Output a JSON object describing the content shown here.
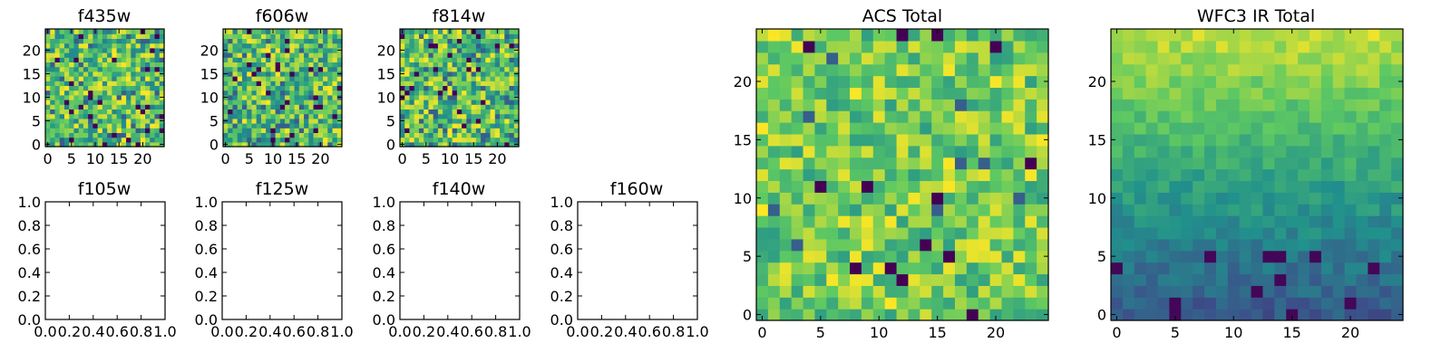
{
  "colormap": [
    "#440154",
    "#3b528b",
    "#21918c",
    "#5ec962",
    "#fde725"
  ],
  "frame_color": "#000000",
  "chart_data": [
    {
      "type": "heatmap",
      "title": "f435w",
      "grid_size": [
        25,
        25
      ],
      "seed": 11,
      "pattern": "noise",
      "xlim": [
        -0.5,
        24.5
      ],
      "ylim": [
        -0.5,
        24.5
      ],
      "xticks": [
        0,
        5,
        10,
        15,
        20
      ],
      "yticks": [
        0,
        5,
        10,
        15,
        20
      ],
      "xticklabels": [
        "0",
        "5",
        "10",
        "15",
        "20"
      ],
      "yticklabels": [
        "0",
        "5",
        "10",
        "15",
        "20"
      ]
    },
    {
      "type": "heatmap",
      "title": "f606w",
      "grid_size": [
        25,
        25
      ],
      "seed": 23,
      "pattern": "noise",
      "xlim": [
        -0.5,
        24.5
      ],
      "ylim": [
        -0.5,
        24.5
      ],
      "xticks": [
        0,
        5,
        10,
        15,
        20
      ],
      "yticks": [
        0,
        5,
        10,
        15,
        20
      ],
      "xticklabels": [
        "0",
        "5",
        "10",
        "15",
        "20"
      ],
      "yticklabels": [
        "0",
        "5",
        "10",
        "15",
        "20"
      ]
    },
    {
      "type": "heatmap",
      "title": "f814w",
      "grid_size": [
        25,
        25
      ],
      "seed": 37,
      "pattern": "noise",
      "xlim": [
        -0.5,
        24.5
      ],
      "ylim": [
        -0.5,
        24.5
      ],
      "xticks": [
        0,
        5,
        10,
        15,
        20
      ],
      "yticks": [
        0,
        5,
        10,
        15,
        20
      ],
      "xticklabels": [
        "0",
        "5",
        "10",
        "15",
        "20"
      ],
      "yticklabels": [
        "0",
        "5",
        "10",
        "15",
        "20"
      ]
    },
    {
      "type": "line",
      "title": "f105w",
      "series": [],
      "xlim": [
        0.0,
        1.0
      ],
      "ylim": [
        0.0,
        1.0
      ],
      "xticks": [
        0.0,
        0.2,
        0.4,
        0.6,
        0.8,
        1.0
      ],
      "yticks": [
        0.0,
        0.2,
        0.4,
        0.6,
        0.8,
        1.0
      ],
      "xticklabels": [
        "0.0",
        "0.2",
        "0.4",
        "0.6",
        "0.8",
        "1.0"
      ],
      "yticklabels": [
        "0.0",
        "0.2",
        "0.4",
        "0.6",
        "0.8",
        "1.0"
      ]
    },
    {
      "type": "line",
      "title": "f125w",
      "series": [],
      "xlim": [
        0.0,
        1.0
      ],
      "ylim": [
        0.0,
        1.0
      ],
      "xticks": [
        0.0,
        0.2,
        0.4,
        0.6,
        0.8,
        1.0
      ],
      "yticks": [
        0.0,
        0.2,
        0.4,
        0.6,
        0.8,
        1.0
      ],
      "xticklabels": [
        "0.0",
        "0.2",
        "0.4",
        "0.6",
        "0.8",
        "1.0"
      ],
      "yticklabels": [
        "0.0",
        "0.2",
        "0.4",
        "0.6",
        "0.8",
        "1.0"
      ]
    },
    {
      "type": "line",
      "title": "f140w",
      "series": [],
      "xlim": [
        0.0,
        1.0
      ],
      "ylim": [
        0.0,
        1.0
      ],
      "xticks": [
        0.0,
        0.2,
        0.4,
        0.6,
        0.8,
        1.0
      ],
      "yticks": [
        0.0,
        0.2,
        0.4,
        0.6,
        0.8,
        1.0
      ],
      "xticklabels": [
        "0.0",
        "0.2",
        "0.4",
        "0.6",
        "0.8",
        "1.0"
      ],
      "yticklabels": [
        "0.0",
        "0.2",
        "0.4",
        "0.6",
        "0.8",
        "1.0"
      ]
    },
    {
      "type": "line",
      "title": "f160w",
      "series": [],
      "xlim": [
        0.0,
        1.0
      ],
      "ylim": [
        0.0,
        1.0
      ],
      "xticks": [
        0.0,
        0.2,
        0.4,
        0.6,
        0.8,
        1.0
      ],
      "yticks": [
        0.0,
        0.2,
        0.4,
        0.6,
        0.8,
        1.0
      ],
      "xticklabels": [
        "0.0",
        "0.2",
        "0.4",
        "0.6",
        "0.8",
        "1.0"
      ],
      "yticklabels": [
        "0.0",
        "0.2",
        "0.4",
        "0.6",
        "0.8",
        "1.0"
      ]
    },
    {
      "type": "heatmap",
      "title": "ACS Total",
      "grid_size": [
        25,
        25
      ],
      "seed": 53,
      "pattern": "bright_noise",
      "xlim": [
        -0.5,
        24.5
      ],
      "ylim": [
        -0.5,
        24.5
      ],
      "xticks": [
        0,
        5,
        10,
        15,
        20
      ],
      "yticks": [
        0,
        5,
        10,
        15,
        20
      ],
      "xticklabels": [
        "0",
        "5",
        "10",
        "15",
        "20"
      ],
      "yticklabels": [
        "0",
        "5",
        "10",
        "15",
        "20"
      ]
    },
    {
      "type": "heatmap",
      "title": "WFC3 IR Total",
      "grid_size": [
        25,
        25
      ],
      "seed": 71,
      "pattern": "vertical_gradient",
      "xlim": [
        -0.5,
        24.5
      ],
      "ylim": [
        -0.5,
        24.5
      ],
      "xticks": [
        0,
        5,
        10,
        15,
        20
      ],
      "yticks": [
        0,
        5,
        10,
        15,
        20
      ],
      "xticklabels": [
        "0",
        "5",
        "10",
        "15",
        "20"
      ],
      "yticklabels": [
        "0",
        "5",
        "10",
        "15",
        "20"
      ]
    }
  ]
}
